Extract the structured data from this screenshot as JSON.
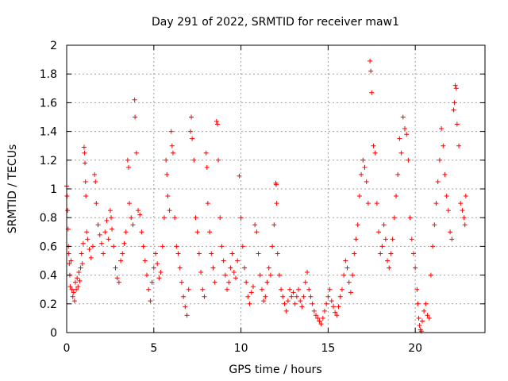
{
  "chart_data": {
    "type": "scatter",
    "title": "Day 291 of 2022, SRMTID for receiver maw1",
    "xlabel": "GPS time / hours",
    "ylabel": "SRMTID / TECUs",
    "xlim": [
      0,
      24
    ],
    "ylim": [
      0,
      2
    ],
    "x_ticks": [
      0,
      5,
      10,
      15,
      20
    ],
    "x_tick_labels": [
      "0",
      "5",
      "10",
      "15",
      "20"
    ],
    "y_ticks": [
      0,
      0.2,
      0.4,
      0.6,
      0.8,
      1,
      1.2,
      1.4,
      1.6,
      1.8,
      2
    ],
    "y_tick_labels": [
      "0",
      "0.2",
      "0.4",
      "0.6",
      "0.8",
      "1",
      "1.2",
      "1.4",
      "1.6",
      "1.8",
      "2"
    ],
    "grid": true,
    "marker": "+",
    "color": "#ff0000",
    "series": [
      {
        "name": "maw1",
        "points": [
          [
            0.0,
            1.02
          ],
          [
            0.02,
            0.95
          ],
          [
            0.05,
            0.85
          ],
          [
            0.08,
            0.72
          ],
          [
            0.1,
            0.6
          ],
          [
            0.12,
            0.55
          ],
          [
            0.15,
            0.48
          ],
          [
            0.18,
            0.4
          ],
          [
            0.2,
            0.32
          ],
          [
            0.25,
            0.5
          ],
          [
            0.3,
            0.3
          ],
          [
            0.35,
            0.25
          ],
          [
            0.4,
            0.28
          ],
          [
            0.45,
            0.22
          ],
          [
            0.5,
            0.35
          ],
          [
            0.55,
            0.3
          ],
          [
            0.6,
            0.38
          ],
          [
            0.65,
            0.32
          ],
          [
            0.7,
            0.42
          ],
          [
            0.75,
            0.36
          ],
          [
            0.8,
            0.45
          ],
          [
            0.85,
            0.55
          ],
          [
            0.9,
            0.48
          ],
          [
            0.95,
            0.62
          ],
          [
            1.0,
            1.29
          ],
          [
            1.02,
            1.25
          ],
          [
            1.05,
            1.18
          ],
          [
            1.08,
            1.05
          ],
          [
            1.1,
            0.95
          ],
          [
            1.15,
            0.7
          ],
          [
            1.2,
            0.65
          ],
          [
            1.3,
            0.58
          ],
          [
            1.4,
            0.52
          ],
          [
            1.5,
            0.6
          ],
          [
            1.6,
            1.1
          ],
          [
            1.65,
            1.05
          ],
          [
            1.7,
            0.9
          ],
          [
            1.8,
            0.75
          ],
          [
            1.9,
            0.68
          ],
          [
            2.0,
            0.62
          ],
          [
            2.1,
            0.55
          ],
          [
            2.2,
            0.7
          ],
          [
            2.3,
            0.78
          ],
          [
            2.4,
            0.65
          ],
          [
            2.5,
            0.85
          ],
          [
            2.55,
            0.8
          ],
          [
            2.6,
            0.72
          ],
          [
            2.7,
            0.6
          ],
          [
            2.8,
            0.45
          ],
          [
            2.9,
            0.38
          ],
          [
            3.0,
            0.35
          ],
          [
            3.1,
            0.5
          ],
          [
            3.2,
            0.55
          ],
          [
            3.3,
            0.62
          ],
          [
            3.4,
            0.7
          ],
          [
            3.5,
            1.2
          ],
          [
            3.55,
            1.15
          ],
          [
            3.6,
            0.9
          ],
          [
            3.7,
            0.8
          ],
          [
            3.8,
            0.75
          ],
          [
            3.9,
            1.62
          ],
          [
            3.92,
            1.5
          ],
          [
            4.0,
            1.25
          ],
          [
            4.1,
            0.85
          ],
          [
            4.2,
            0.82
          ],
          [
            4.3,
            0.7
          ],
          [
            4.4,
            0.6
          ],
          [
            4.5,
            0.5
          ],
          [
            4.6,
            0.4
          ],
          [
            4.7,
            0.3
          ],
          [
            4.8,
            0.22
          ],
          [
            4.9,
            0.35
          ],
          [
            5.0,
            0.45
          ],
          [
            5.1,
            0.55
          ],
          [
            5.2,
            0.48
          ],
          [
            5.3,
            0.38
          ],
          [
            5.4,
            0.42
          ],
          [
            5.5,
            0.6
          ],
          [
            5.6,
            0.8
          ],
          [
            5.7,
            1.2
          ],
          [
            5.75,
            1.1
          ],
          [
            5.8,
            0.95
          ],
          [
            5.9,
            0.85
          ],
          [
            6.0,
            1.4
          ],
          [
            6.05,
            1.3
          ],
          [
            6.1,
            1.25
          ],
          [
            6.2,
            0.8
          ],
          [
            6.3,
            0.6
          ],
          [
            6.4,
            0.55
          ],
          [
            6.5,
            0.45
          ],
          [
            6.6,
            0.35
          ],
          [
            6.7,
            0.25
          ],
          [
            6.8,
            0.18
          ],
          [
            6.9,
            0.12
          ],
          [
            7.0,
            0.3
          ],
          [
            7.1,
            1.4
          ],
          [
            7.15,
            1.5
          ],
          [
            7.2,
            1.35
          ],
          [
            7.3,
            1.2
          ],
          [
            7.4,
            0.8
          ],
          [
            7.5,
            0.7
          ],
          [
            7.6,
            0.55
          ],
          [
            7.7,
            0.42
          ],
          [
            7.8,
            0.3
          ],
          [
            7.9,
            0.25
          ],
          [
            8.0,
            1.25
          ],
          [
            8.05,
            1.15
          ],
          [
            8.1,
            0.9
          ],
          [
            8.2,
            0.7
          ],
          [
            8.3,
            0.55
          ],
          [
            8.4,
            0.45
          ],
          [
            8.5,
            0.35
          ],
          [
            8.6,
            1.47
          ],
          [
            8.65,
            1.45
          ],
          [
            8.7,
            1.2
          ],
          [
            8.8,
            0.8
          ],
          [
            8.9,
            0.6
          ],
          [
            9.0,
            0.5
          ],
          [
            9.1,
            0.4
          ],
          [
            9.2,
            0.3
          ],
          [
            9.3,
            0.35
          ],
          [
            9.4,
            0.45
          ],
          [
            9.5,
            0.55
          ],
          [
            9.6,
            0.42
          ],
          [
            9.7,
            0.38
          ],
          [
            9.8,
            0.5
          ],
          [
            9.9,
            1.09
          ],
          [
            10.0,
            0.8
          ],
          [
            10.1,
            0.6
          ],
          [
            10.2,
            0.45
          ],
          [
            10.3,
            0.35
          ],
          [
            10.4,
            0.25
          ],
          [
            10.5,
            0.2
          ],
          [
            10.6,
            0.28
          ],
          [
            10.7,
            0.32
          ],
          [
            10.8,
            0.75
          ],
          [
            10.9,
            0.7
          ],
          [
            11.0,
            0.55
          ],
          [
            11.1,
            0.4
          ],
          [
            11.2,
            0.3
          ],
          [
            11.3,
            0.22
          ],
          [
            11.4,
            0.25
          ],
          [
            11.5,
            0.35
          ],
          [
            11.6,
            0.45
          ],
          [
            11.7,
            0.4
          ],
          [
            11.8,
            0.6
          ],
          [
            11.9,
            0.75
          ],
          [
            12.0,
            1.04
          ],
          [
            12.02,
            1.03
          ],
          [
            12.05,
            0.9
          ],
          [
            12.1,
            0.55
          ],
          [
            12.2,
            0.4
          ],
          [
            12.3,
            0.3
          ],
          [
            12.4,
            0.25
          ],
          [
            12.5,
            0.2
          ],
          [
            12.6,
            0.15
          ],
          [
            12.7,
            0.22
          ],
          [
            12.8,
            0.3
          ],
          [
            12.9,
            0.25
          ],
          [
            13.0,
            0.28
          ],
          [
            13.1,
            0.2
          ],
          [
            13.2,
            0.25
          ],
          [
            13.3,
            0.3
          ],
          [
            13.4,
            0.22
          ],
          [
            13.5,
            0.18
          ],
          [
            13.6,
            0.25
          ],
          [
            13.7,
            0.35
          ],
          [
            13.8,
            0.42
          ],
          [
            13.9,
            0.3
          ],
          [
            14.0,
            0.25
          ],
          [
            14.1,
            0.2
          ],
          [
            14.2,
            0.15
          ],
          [
            14.3,
            0.12
          ],
          [
            14.4,
            0.1
          ],
          [
            14.5,
            0.08
          ],
          [
            14.6,
            0.06
          ],
          [
            14.7,
            0.1
          ],
          [
            14.8,
            0.15
          ],
          [
            14.9,
            0.2
          ],
          [
            15.0,
            0.25
          ],
          [
            15.1,
            0.3
          ],
          [
            15.2,
            0.22
          ],
          [
            15.3,
            0.18
          ],
          [
            15.4,
            0.14
          ],
          [
            15.5,
            0.12
          ],
          [
            15.6,
            0.18
          ],
          [
            15.7,
            0.25
          ],
          [
            15.8,
            0.3
          ],
          [
            15.9,
            0.4
          ],
          [
            16.0,
            0.5
          ],
          [
            16.1,
            0.45
          ],
          [
            16.2,
            0.35
          ],
          [
            16.3,
            0.28
          ],
          [
            16.4,
            0.4
          ],
          [
            16.5,
            0.55
          ],
          [
            16.6,
            0.65
          ],
          [
            16.7,
            0.75
          ],
          [
            16.8,
            0.95
          ],
          [
            16.9,
            1.1
          ],
          [
            17.0,
            1.2
          ],
          [
            17.1,
            1.15
          ],
          [
            17.2,
            1.05
          ],
          [
            17.3,
            0.9
          ],
          [
            17.4,
            1.89
          ],
          [
            17.45,
            1.82
          ],
          [
            17.5,
            1.67
          ],
          [
            17.6,
            1.3
          ],
          [
            17.7,
            1.25
          ],
          [
            17.8,
            0.9
          ],
          [
            17.9,
            0.7
          ],
          [
            18.0,
            0.55
          ],
          [
            18.1,
            0.6
          ],
          [
            18.2,
            0.75
          ],
          [
            18.3,
            0.65
          ],
          [
            18.4,
            0.5
          ],
          [
            18.5,
            0.45
          ],
          [
            18.6,
            0.55
          ],
          [
            18.7,
            0.65
          ],
          [
            18.8,
            0.8
          ],
          [
            18.9,
            0.95
          ],
          [
            19.0,
            1.1
          ],
          [
            19.1,
            1.35
          ],
          [
            19.2,
            1.25
          ],
          [
            19.3,
            1.5
          ],
          [
            19.4,
            1.42
          ],
          [
            19.5,
            1.38
          ],
          [
            19.6,
            1.2
          ],
          [
            19.7,
            0.8
          ],
          [
            19.8,
            0.65
          ],
          [
            19.9,
            0.55
          ],
          [
            20.0,
            0.45
          ],
          [
            20.1,
            0.3
          ],
          [
            20.15,
            0.2
          ],
          [
            20.2,
            0.1
          ],
          [
            20.25,
            0.05
          ],
          [
            20.3,
            0.02
          ],
          [
            20.35,
            0.01
          ],
          [
            20.4,
            0.08
          ],
          [
            20.5,
            0.15
          ],
          [
            20.6,
            0.2
          ],
          [
            20.7,
            0.12
          ],
          [
            20.8,
            0.1
          ],
          [
            20.9,
            0.4
          ],
          [
            21.0,
            0.6
          ],
          [
            21.1,
            0.75
          ],
          [
            21.2,
            0.9
          ],
          [
            21.3,
            1.05
          ],
          [
            21.4,
            1.2
          ],
          [
            21.5,
            1.42
          ],
          [
            21.6,
            1.3
          ],
          [
            21.7,
            1.1
          ],
          [
            21.8,
            0.95
          ],
          [
            21.9,
            0.85
          ],
          [
            22.0,
            0.7
          ],
          [
            22.1,
            0.65
          ],
          [
            22.2,
            1.55
          ],
          [
            22.25,
            1.6
          ],
          [
            22.3,
            1.72
          ],
          [
            22.35,
            1.7
          ],
          [
            22.4,
            1.45
          ],
          [
            22.5,
            1.3
          ],
          [
            22.6,
            0.9
          ],
          [
            22.7,
            0.85
          ],
          [
            22.8,
            0.8
          ],
          [
            22.85,
            0.75
          ],
          [
            22.9,
            0.95
          ]
        ]
      }
    ]
  }
}
